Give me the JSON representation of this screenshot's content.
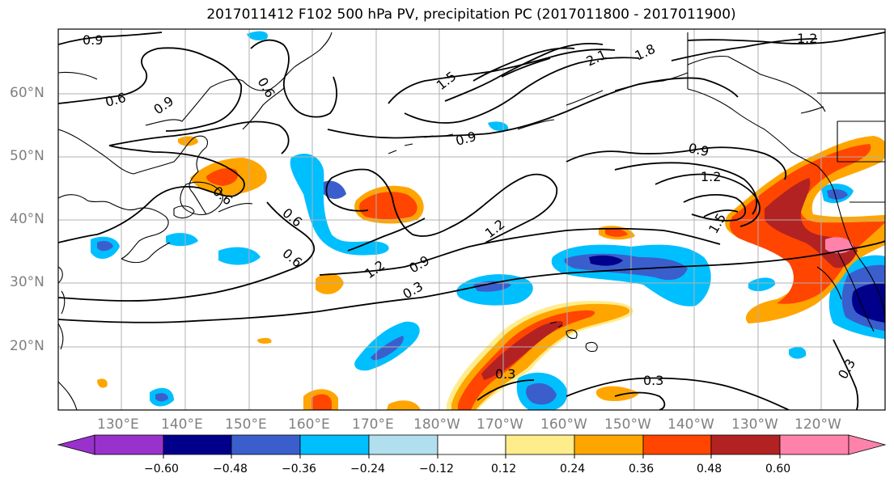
{
  "title": "2017011412 F102 500 hPa PV, precipitation PC (2017011800 - 2017011900)",
  "lat_labels": [
    "60°N",
    "50°N",
    "40°N",
    "30°N",
    "20°N"
  ],
  "lon_labels": [
    "130°E",
    "140°E",
    "150°E",
    "160°E",
    "170°E",
    "180°W",
    "170°W",
    "160°W",
    "150°W",
    "140°W",
    "130°W",
    "120°W"
  ],
  "colorbar": {
    "labels": [
      "−0.60",
      "−0.48",
      "−0.36",
      "−0.24",
      "−0.12",
      "0.12",
      "0.24",
      "0.36",
      "0.48",
      "0.60"
    ],
    "colors": [
      "#9932cc",
      "#00008b",
      "#3a5fcd",
      "#00bfff",
      "#b2dfee",
      "#ffffff",
      "#ffec8b",
      "#ffa500",
      "#ff4500",
      "#b22222",
      "#ff82ab"
    ]
  },
  "contour_labels": [
    {
      "text": "0.9",
      "color": "#000000"
    },
    {
      "text": "0.6",
      "color": "#000000"
    },
    {
      "text": "0.9",
      "color": "#000000"
    },
    {
      "text": "0.6",
      "color": "#000000"
    },
    {
      "text": "1.5",
      "color": "#000000"
    },
    {
      "text": "2.1",
      "color": "#000000"
    },
    {
      "text": "1.8",
      "color": "#000000"
    },
    {
      "text": "1.2",
      "color": "#000000"
    },
    {
      "text": "0.9",
      "color": "#000000"
    },
    {
      "text": "0.9",
      "color": "#000000"
    },
    {
      "text": "1.2",
      "color": "#000000"
    },
    {
      "text": "0.6",
      "color": "#000000"
    },
    {
      "text": "0.6",
      "color": "#000000"
    },
    {
      "text": "0.6",
      "color": "#000000"
    },
    {
      "text": "1.2",
      "color": "#000000"
    },
    {
      "text": "1.2",
      "color": "#000000"
    },
    {
      "text": "0.9",
      "color": "#000000"
    },
    {
      "text": "0.3",
      "color": "#000000"
    },
    {
      "text": "1.5",
      "color": "#000000"
    },
    {
      "text": "0.3",
      "color": "#000000"
    },
    {
      "text": "0.3",
      "color": "#000000"
    },
    {
      "text": "0.3",
      "color": "#000000"
    }
  ]
}
